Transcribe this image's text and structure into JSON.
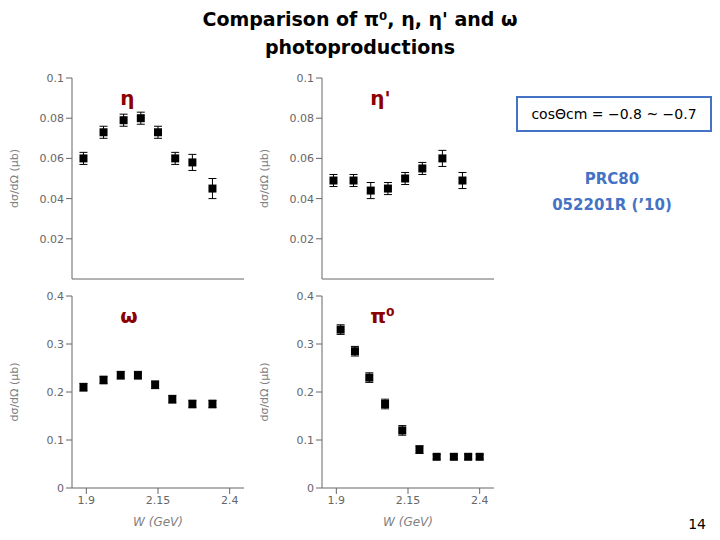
{
  "title": [
    "Comparison of π⁰, η, η' and ω",
    "photoproductions"
  ],
  "annotations": [
    {
      "text": "cosΘcm = −0.8 ~ −0.7",
      "color": "#4472C4"
    },
    {
      "text": "PRC80",
      "color": "#4472C4"
    },
    {
      "text": "052201R (’10)",
      "color": "#4472C4"
    },
    {
      "text": "14",
      "color": "#000000"
    }
  ],
  "chart_data": [
    {
      "type": "scatter",
      "annotations": [
        {
          "text": "η",
          "color": "#8B0000"
        }
      ],
      "x": [
        1.89,
        1.96,
        2.03,
        2.09,
        2.15,
        2.21,
        2.27,
        2.34
      ],
      "values": [
        0.06,
        0.073,
        0.079,
        0.08,
        0.073,
        0.06,
        0.058,
        0.045
      ],
      "errors": [
        0.003,
        0.003,
        0.003,
        0.003,
        0.003,
        0.003,
        0.004,
        0.005
      ],
      "xlim": [
        1.85,
        2.45
      ],
      "xticks": [
        1.9,
        2.15,
        2.4
      ],
      "ylim": [
        0,
        0.1
      ],
      "yticks": [
        0.02,
        0.04,
        0.06,
        0.08,
        0.1
      ],
      "y_label": "dσ/dΩ (μb)",
      "tick_labels": "y",
      "color": "#000000",
      "marker": "square",
      "grid": false
    },
    {
      "type": "scatter",
      "annotations": [
        {
          "text": "η'",
          "color": "#8B0000"
        }
      ],
      "x": [
        1.89,
        1.96,
        2.02,
        2.08,
        2.14,
        2.2,
        2.27,
        2.34
      ],
      "values": [
        0.049,
        0.049,
        0.044,
        0.045,
        0.05,
        0.055,
        0.06,
        0.049
      ],
      "errors": [
        0.003,
        0.003,
        0.004,
        0.003,
        0.003,
        0.003,
        0.004,
        0.004
      ],
      "xlim": [
        1.85,
        2.45
      ],
      "xticks": [
        1.9,
        2.15,
        2.4
      ],
      "ylim": [
        0,
        0.1
      ],
      "yticks": [
        0.02,
        0.04,
        0.06,
        0.08,
        0.1
      ],
      "y_label": "dσ/dΩ (μb)",
      "tick_labels": "y",
      "color": "#000000",
      "marker": "square",
      "grid": false
    },
    {
      "type": "scatter",
      "annotations": [
        {
          "text": "ω",
          "color": "#8B0000"
        }
      ],
      "x": [
        1.89,
        1.96,
        2.02,
        2.08,
        2.14,
        2.2,
        2.27,
        2.34
      ],
      "values": [
        0.21,
        0.225,
        0.235,
        0.235,
        0.215,
        0.185,
        0.175,
        0.175
      ],
      "errors": [
        0.008,
        0.008,
        0.008,
        0.008,
        0.008,
        0.008,
        0.008,
        0.008
      ],
      "xlim": [
        1.85,
        2.45
      ],
      "xticks": [
        1.9,
        2.15,
        2.4
      ],
      "ylim": [
        0,
        0.4
      ],
      "yticks": [
        0,
        0.1,
        0.2,
        0.3,
        0.4
      ],
      "y_label": "dσ/dΩ (μb)",
      "x_label": "W (GeV)",
      "color": "#000000",
      "marker": "square",
      "grid": false
    },
    {
      "type": "scatter",
      "annotations": [
        {
          "text": "π⁰",
          "color": "#8B0000"
        }
      ],
      "x": [
        1.915,
        1.965,
        2.015,
        2.07,
        2.13,
        2.19,
        2.25,
        2.31,
        2.36,
        2.4
      ],
      "values": [
        0.33,
        0.285,
        0.23,
        0.175,
        0.12,
        0.08,
        0.065,
        0.065,
        0.065,
        0.065
      ],
      "errors": [
        0.01,
        0.01,
        0.01,
        0.01,
        0.01,
        0.008,
        0.005,
        0.005,
        0.005,
        0.005
      ],
      "xlim": [
        1.85,
        2.45
      ],
      "xticks": [
        1.9,
        2.15,
        2.4
      ],
      "ylim": [
        0,
        0.4
      ],
      "yticks": [
        0,
        0.1,
        0.2,
        0.3,
        0.4
      ],
      "y_label": "dσ/dΩ (μb)",
      "x_label": "W (GeV)",
      "color": "#000000",
      "marker": "square",
      "grid": false
    }
  ]
}
